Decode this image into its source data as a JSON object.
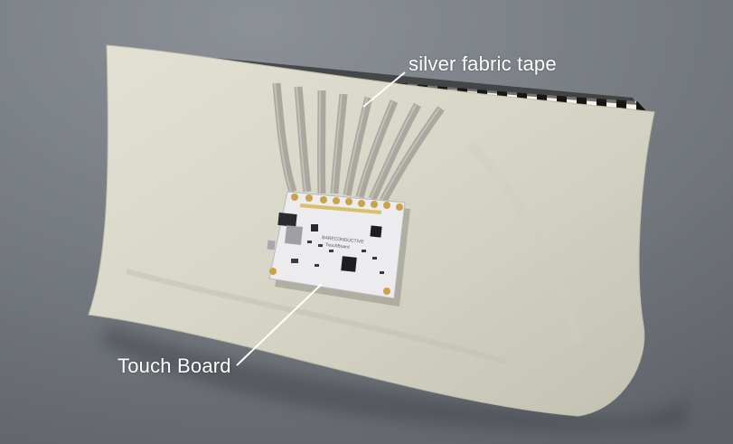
{
  "annotations": {
    "tape_label": "silver fabric tape",
    "board_label": "Touch Board"
  },
  "board": {
    "brand": "BARECONDUCTIVE",
    "model": "TouchBoard"
  },
  "colors": {
    "background": "#70757b",
    "pillow": "#d7d6c8",
    "tape": "#a7a49c",
    "board": "#e9e9ec",
    "label": "#ffffff"
  }
}
